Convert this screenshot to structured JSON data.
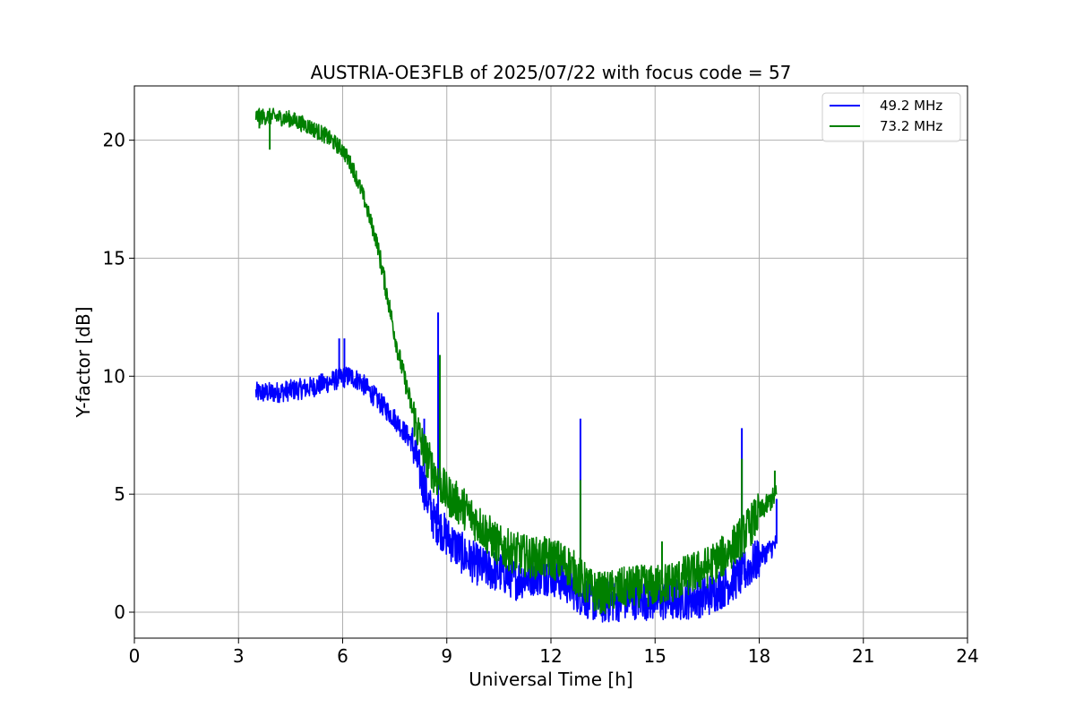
{
  "chart_data": {
    "type": "line",
    "title": "AUSTRIA-OE3FLB of 2025/07/22 with focus code = 57",
    "xlabel": "Universal Time [h]",
    "ylabel": "Y-factor [dB]",
    "xlim": [
      0,
      24
    ],
    "ylim": [
      -1.1,
      22.3
    ],
    "xticks": [
      0,
      3,
      6,
      9,
      12,
      15,
      18,
      21,
      24
    ],
    "yticks": [
      0,
      5,
      10,
      15,
      20
    ],
    "grid": true,
    "legend_position": "top-right",
    "series": [
      {
        "name": "49.2 MHz",
        "color": "#0000ff",
        "x": [
          3.5,
          4.0,
          4.5,
          5.0,
          5.5,
          5.9,
          6.2,
          6.5,
          7.0,
          7.5,
          8.0,
          8.3,
          8.6,
          9.0,
          9.5,
          10.0,
          10.5,
          11.0,
          11.5,
          12.0,
          12.5,
          12.8,
          13.2,
          13.5,
          14.0,
          14.5,
          15.0,
          15.5,
          16.0,
          16.5,
          17.0,
          17.5,
          18.0,
          18.5
        ],
        "y": [
          9.3,
          9.3,
          9.4,
          9.5,
          9.7,
          9.9,
          10.0,
          9.8,
          9.0,
          8.2,
          7.2,
          5.5,
          4.0,
          3.2,
          2.4,
          1.9,
          1.7,
          1.4,
          1.6,
          1.6,
          1.2,
          0.8,
          0.5,
          0.4,
          0.5,
          0.6,
          0.5,
          0.5,
          0.6,
          0.7,
          1.1,
          1.6,
          2.3,
          2.9
        ],
        "spikes": [
          {
            "x": 5.9,
            "y": 11.6
          },
          {
            "x": 6.05,
            "y": 11.6
          },
          {
            "x": 8.35,
            "y": 8.2
          },
          {
            "x": 8.75,
            "y": 12.7
          },
          {
            "x": 12.85,
            "y": 8.2
          },
          {
            "x": 17.5,
            "y": 7.8
          },
          {
            "x": 18.5,
            "y": 4.8
          }
        ]
      },
      {
        "name": "73.2 MHz",
        "color": "#008000",
        "x": [
          3.5,
          4.0,
          4.5,
          5.0,
          5.5,
          6.0,
          6.3,
          6.6,
          7.0,
          7.3,
          7.6,
          8.0,
          8.3,
          8.6,
          9.0,
          9.5,
          10.0,
          10.5,
          11.0,
          11.5,
          12.0,
          12.5,
          12.8,
          13.2,
          13.5,
          14.0,
          14.5,
          15.0,
          15.5,
          16.0,
          16.5,
          17.0,
          17.5,
          18.0,
          18.5
        ],
        "y": [
          21.0,
          21.0,
          20.9,
          20.6,
          20.2,
          19.6,
          18.8,
          17.6,
          15.6,
          13.3,
          11.0,
          8.6,
          7.0,
          6.0,
          5.0,
          4.4,
          3.6,
          2.8,
          2.5,
          2.3,
          2.3,
          2.0,
          1.5,
          0.9,
          0.8,
          1.0,
          1.1,
          1.1,
          1.3,
          1.6,
          1.9,
          2.4,
          3.2,
          4.2,
          5.0
        ],
        "spikes": [
          {
            "x": 3.6,
            "y": 20.5
          },
          {
            "x": 3.9,
            "y": 19.6
          },
          {
            "x": 8.8,
            "y": 10.9
          },
          {
            "x": 12.85,
            "y": 5.6
          },
          {
            "x": 15.2,
            "y": 3.0
          },
          {
            "x": 17.5,
            "y": 6.5
          },
          {
            "x": 18.45,
            "y": 6.0
          }
        ]
      }
    ]
  }
}
